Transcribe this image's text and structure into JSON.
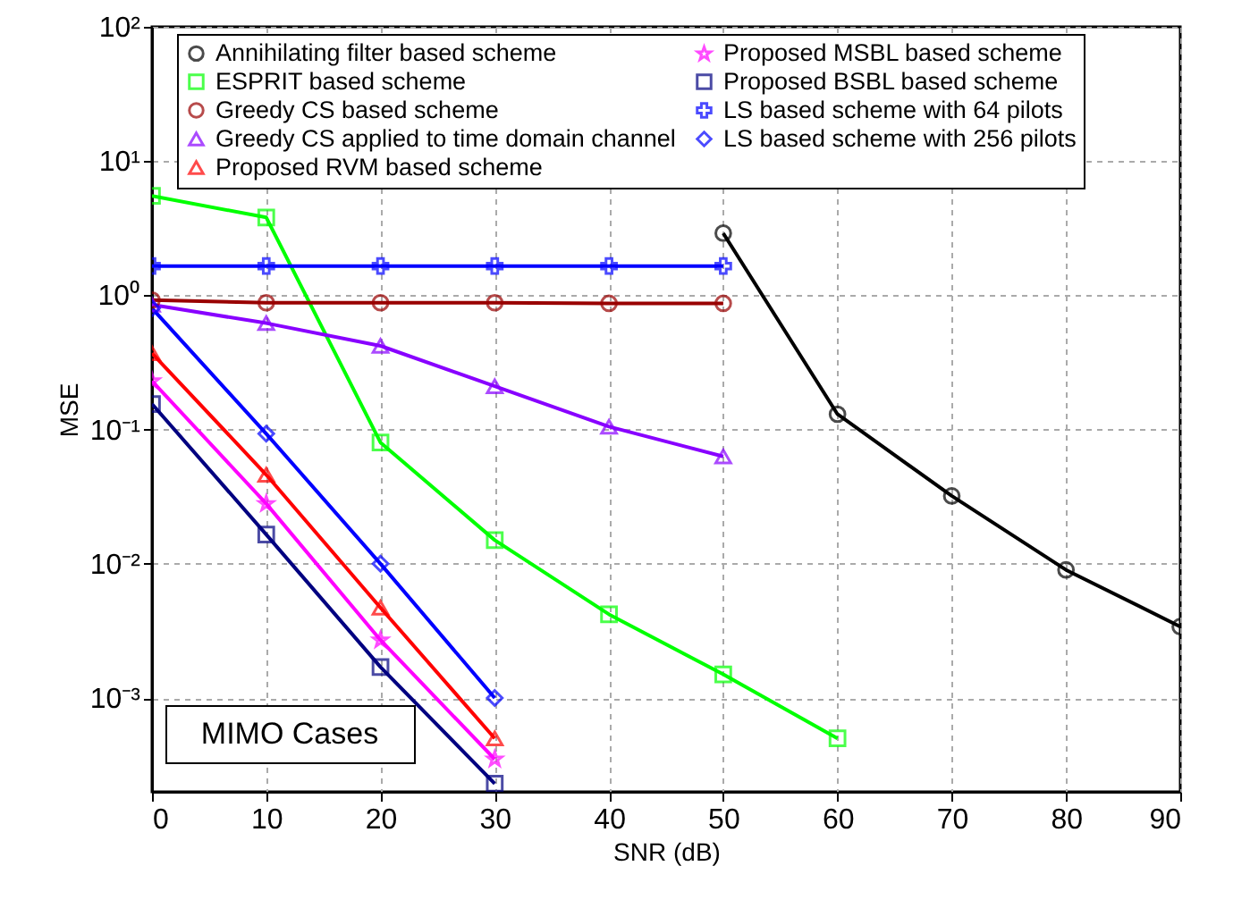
{
  "chart_data": {
    "type": "line",
    "xlabel": "SNR (dB)",
    "ylabel": "MSE",
    "x": [
      0,
      10,
      20,
      30,
      40,
      50,
      60,
      70,
      80,
      90
    ],
    "series": [
      {
        "name": "Annihilating filter based scheme",
        "color": "#000000",
        "marker": "circle",
        "values": [
          null,
          null,
          null,
          null,
          null,
          2.9,
          0.13,
          0.032,
          0.009,
          0.0034
        ]
      },
      {
        "name": "ESPRIT based scheme",
        "color": "#00ff00",
        "marker": "square",
        "values": [
          5.5,
          3.8,
          0.08,
          0.015,
          0.0042,
          0.0015,
          0.0005,
          null,
          null,
          null
        ]
      },
      {
        "name": "Greedy CS based scheme",
        "color": "#990000",
        "marker": "circle",
        "values": [
          0.92,
          0.88,
          0.88,
          0.88,
          0.87,
          0.87,
          null,
          null,
          null,
          null
        ]
      },
      {
        "name": "Greedy CS applied to time domain channel",
        "color": "#8800ff",
        "marker": "triangle",
        "values": [
          0.85,
          0.62,
          0.42,
          0.21,
          0.105,
          0.063,
          null,
          null,
          null,
          null
        ]
      },
      {
        "name": "Proposed RVM based scheme",
        "color": "#ff0000",
        "marker": "triangle",
        "values": [
          0.37,
          0.046,
          0.0047,
          0.0005,
          null,
          null,
          null,
          null,
          null,
          null
        ]
      },
      {
        "name": "Proposed MSBL based scheme",
        "color": "#ff00ff",
        "marker": "star",
        "values": [
          0.23,
          0.028,
          0.0027,
          0.00035,
          null,
          null,
          null,
          null,
          null,
          null
        ]
      },
      {
        "name": "Proposed BSBL based scheme",
        "color": "#000080",
        "marker": "square",
        "values": [
          0.155,
          0.0165,
          0.0017,
          0.00023,
          null,
          null,
          null,
          null,
          null,
          null
        ]
      },
      {
        "name": "LS based scheme with 64 pilots",
        "color": "#0000ff",
        "marker": "cross",
        "values": [
          1.65,
          1.65,
          1.65,
          1.65,
          1.65,
          1.65,
          null,
          null,
          null,
          null
        ]
      },
      {
        "name": "LS based scheme with 256 pilots",
        "color": "#0000ff",
        "marker": "diamond",
        "values": [
          0.8,
          0.093,
          0.01,
          0.001,
          null,
          null,
          null,
          null,
          null,
          null
        ]
      }
    ],
    "xlim": [
      0,
      90
    ],
    "xticks": [
      0,
      10,
      20,
      30,
      40,
      50,
      60,
      70,
      80,
      90
    ],
    "log": "y",
    "ylim": [
      0.0002,
      100
    ],
    "yticks": [
      {
        "value": 0.001,
        "label": "10⁻³"
      },
      {
        "value": 0.01,
        "label": "10⁻²"
      },
      {
        "value": 0.1,
        "label": "10⁻¹"
      },
      {
        "value": 1,
        "label": "10⁰"
      },
      {
        "value": 10,
        "label": "10¹"
      },
      {
        "value": 100,
        "label": "10²"
      }
    ],
    "grid": true,
    "legend": "top",
    "annotations": [
      "MIMO Cases"
    ]
  }
}
